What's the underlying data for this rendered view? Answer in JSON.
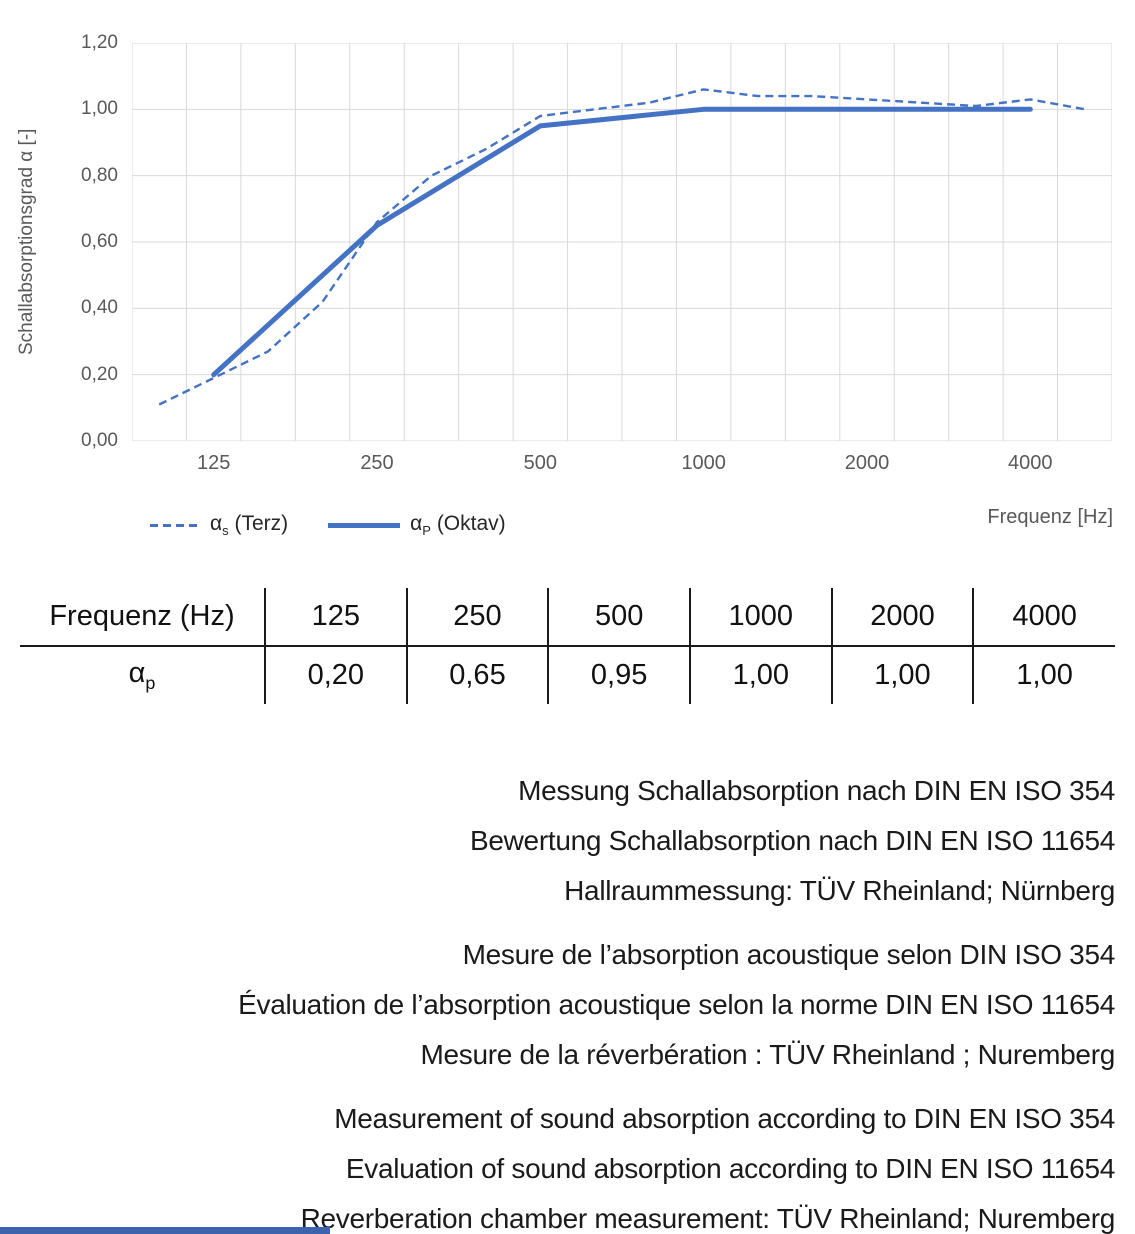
{
  "chart": {
    "y_axis_title": "Schallabsorptionsgrad α [-]",
    "x_axis_title": "Frequenz [Hz]",
    "y_tick_labels": [
      "1,20",
      "1,00",
      "0,80",
      "0,60",
      "0,40",
      "0,20",
      "0,00"
    ],
    "x_tick_labels": [
      "125",
      "250",
      "500",
      "1000",
      "2000",
      "4000"
    ],
    "legend": [
      {
        "alpha": "α",
        "sub": "s",
        "rest": " (Terz)",
        "style": "dashed"
      },
      {
        "alpha": "α",
        "sub": "P",
        "rest": " (Oktav)",
        "style": "solid"
      }
    ]
  },
  "chart_data": {
    "type": "line",
    "title": "",
    "xlabel": "Frequenz [Hz]",
    "ylabel": "Schallabsorptionsgrad α [-]",
    "x_scale": "logarithmic (1/3-octave category slots)",
    "ylim": [
      0,
      1.2
    ],
    "y_tick_step": 0.2,
    "grid": true,
    "legend_position": "bottom-left",
    "categories": [
      100,
      125,
      160,
      200,
      250,
      315,
      400,
      500,
      630,
      800,
      1000,
      1250,
      1600,
      2000,
      2500,
      3150,
      4000,
      5000
    ],
    "series": [
      {
        "name": "αs (Terz)",
        "style": "dashed",
        "color": "#4472C4",
        "values": [
          0.11,
          0.19,
          0.27,
          0.42,
          0.66,
          0.8,
          0.88,
          0.98,
          1.0,
          1.02,
          1.06,
          1.04,
          1.04,
          1.03,
          1.02,
          1.01,
          1.03,
          1.0
        ]
      },
      {
        "name": "αP (Oktav)",
        "style": "solid",
        "color": "#4472C4",
        "category_indices": [
          1,
          4,
          7,
          10,
          13,
          16
        ],
        "x": [
          125,
          250,
          500,
          1000,
          2000,
          4000
        ],
        "values": [
          0.2,
          0.65,
          0.95,
          1.0,
          1.0,
          1.0
        ]
      }
    ]
  },
  "table": {
    "header_row": [
      "Frequenz (Hz)",
      "125",
      "250",
      "500",
      "1000",
      "2000",
      "4000"
    ],
    "value_row": {
      "label_alpha": "α",
      "label_sub": "p",
      "values": [
        "0,20",
        "0,65",
        "0,95",
        "1,00",
        "1,00",
        "1,00"
      ]
    }
  },
  "notes": {
    "german": [
      "Messung Schallabsorption nach DIN EN ISO 354",
      "Bewertung Schallabsorption nach DIN EN ISO 11654",
      "Hallraummessung: TÜV Rheinland; Nürnberg"
    ],
    "french": [
      "Mesure de l’absorption acoustique selon DIN ISO 354",
      "Évaluation de l’absorption acoustique selon la norme DIN EN ISO 11654",
      "Mesure de la réverbération : TÜV Rheinland ; Nuremberg"
    ],
    "english": [
      "Measurement of sound absorption according to DIN EN ISO 354",
      "Evaluation of sound absorption according to DIN EN ISO 11654",
      "Reverberation chamber measurement: TÜV Rheinland; Nuremberg"
    ]
  },
  "colors": {
    "line_blue": "#4472C4",
    "grid_gray": "#D9D9D9",
    "axis_text_gray": "#595959",
    "body_text": "#1A1A1A",
    "footer_bar_blue": "#3E63AE"
  }
}
